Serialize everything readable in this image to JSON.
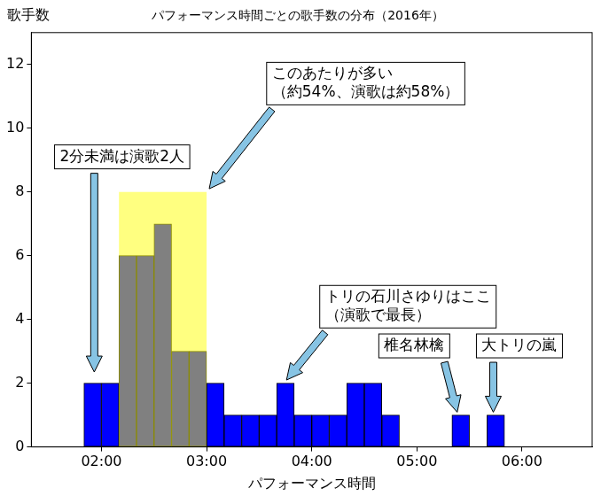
{
  "chart_data": {
    "type": "histogram",
    "title": "パフォーマンス時間ごとの歌手数の分布（2016年）",
    "x_label": "パフォーマンス時間",
    "y_label": "歌手数",
    "bins": [
      110,
      120,
      130,
      140,
      150,
      160,
      170,
      180,
      190,
      200,
      210,
      220,
      230,
      240,
      250,
      260,
      270,
      280,
      290,
      300,
      310,
      320,
      330,
      340,
      350
    ],
    "counts": [
      2,
      2,
      6,
      6,
      7,
      3,
      3,
      2,
      1,
      1,
      1,
      2,
      1,
      1,
      1,
      2,
      2,
      1,
      0,
      0,
      0,
      1,
      0,
      1
    ],
    "colors": [
      "#0000ff",
      "#0000ff",
      "#808080",
      "#808080",
      "#808080",
      "#808080",
      "#808080",
      "#0000ff",
      "#0000ff",
      "#0000ff",
      "#0000ff",
      "#0000ff",
      "#0000ff",
      "#0000ff",
      "#0000ff",
      "#0000ff",
      "#0000ff",
      "#0000ff",
      "#0000ff",
      "#0000ff",
      "#0000ff",
      "#0000ff",
      "#0000ff",
      "#0000ff"
    ],
    "xlim": [
      80,
      400
    ],
    "xticks": [
      {
        "value": 120,
        "label": "02:00"
      },
      {
        "value": 180,
        "label": "03:00"
      },
      {
        "value": 240,
        "label": "04:00"
      },
      {
        "value": 300,
        "label": "05:00"
      },
      {
        "value": 360,
        "label": "06:00"
      }
    ],
    "ylim": [
      0,
      13
    ],
    "yticks": [
      0,
      2,
      4,
      6,
      8,
      10,
      12
    ],
    "grid": false,
    "highlight": {
      "x": [
        130,
        180
      ],
      "y": [
        0,
        8
      ],
      "color": "#ffff80"
    },
    "annotations": [
      {
        "text": "2分未満は演歌2人",
        "xytext": [
          131.8,
          9.1
        ],
        "xy": [
          115.9,
          2.35
        ]
      },
      {
        "text": "このあたりが多い\n（約54%、演歌は約58%）",
        "xytext": [
          270.8,
          11.4
        ],
        "xy": [
          181.5,
          8.1
        ]
      },
      {
        "text": "トリの石川さゆりはここ\n（演歌で最長）",
        "xytext": [
          294.9,
          4.4
        ],
        "xy": [
          225.6,
          2.1
        ]
      },
      {
        "text": "椎名林檎",
        "xytext": [
          298.5,
          3.17
        ],
        "xy": [
          323,
          1.09
        ]
      },
      {
        "text": "大トリの嵐",
        "xytext": [
          358.5,
          3.17
        ],
        "xy": [
          343.6,
          1.09
        ]
      }
    ]
  }
}
